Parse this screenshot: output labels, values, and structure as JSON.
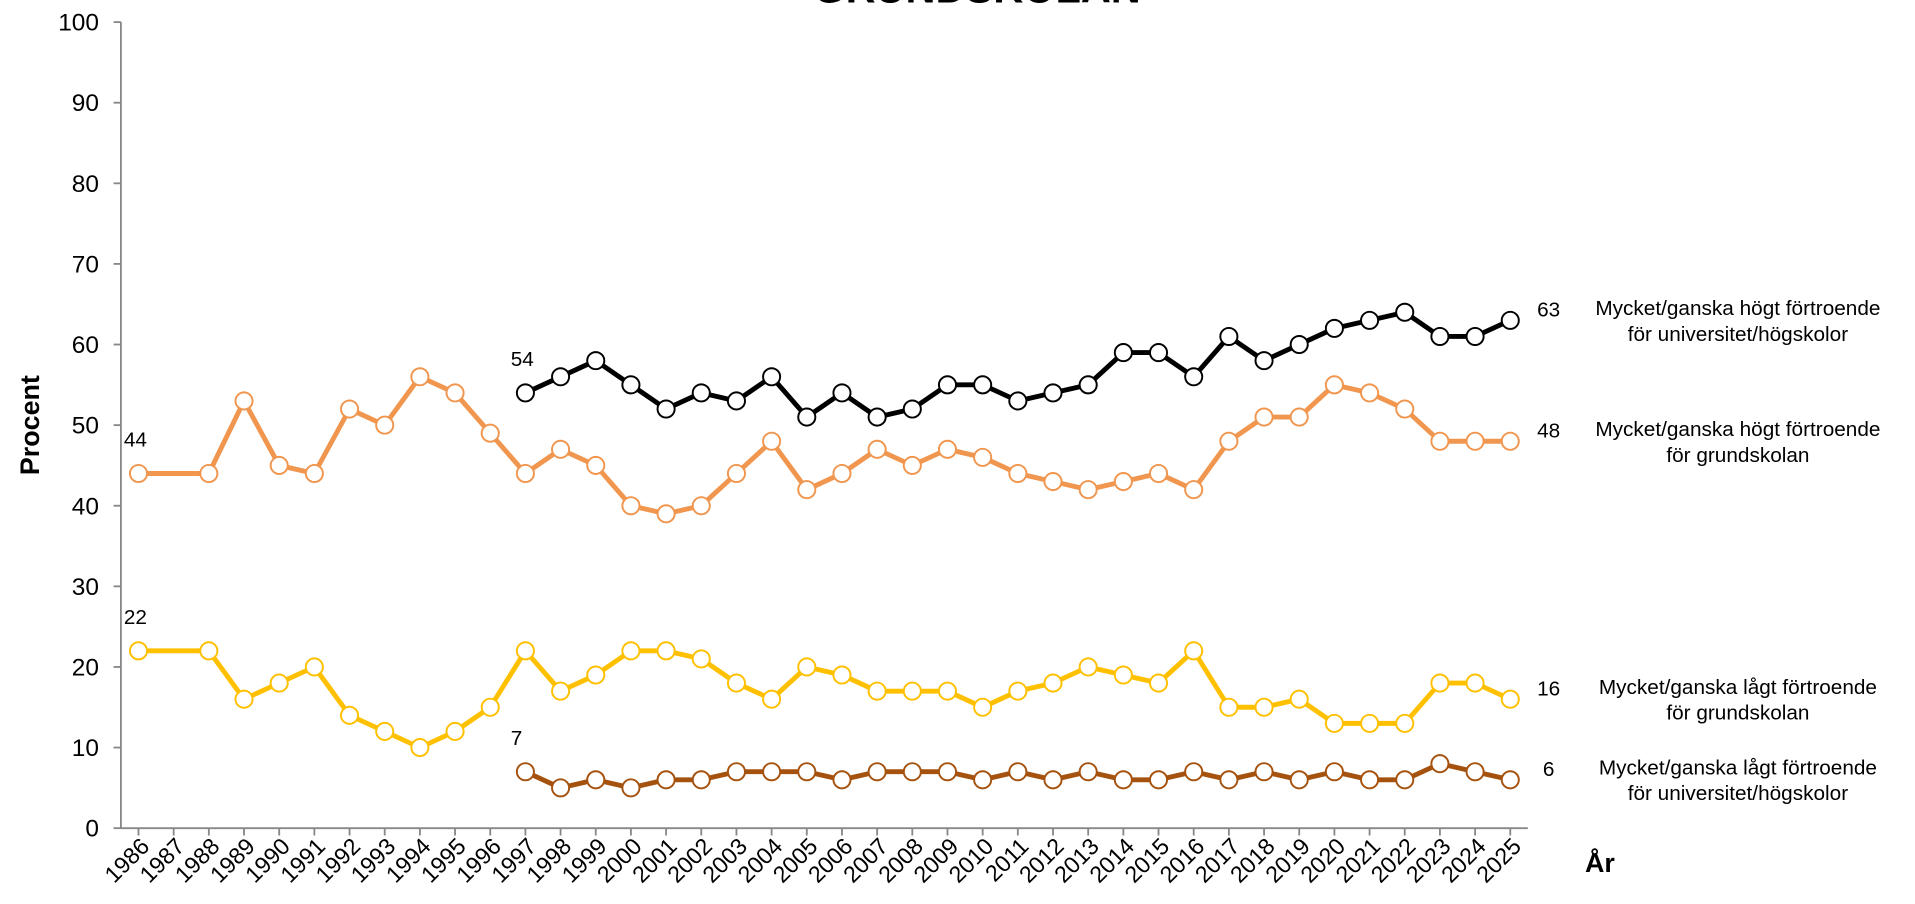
{
  "chart_data": {
    "type": "line",
    "title": "GRUNDSKOLAN",
    "ylabel": "Procent",
    "xlabel": "År",
    "ylim": [
      0,
      100
    ],
    "yticks": [
      0,
      10,
      20,
      30,
      40,
      50,
      60,
      70,
      80,
      90,
      100
    ],
    "xlim": [
      1985.5,
      2025.5
    ],
    "xticks": [
      1986,
      1987,
      1988,
      1989,
      1990,
      1991,
      1992,
      1993,
      1994,
      1995,
      1996,
      1997,
      1998,
      1999,
      2000,
      2001,
      2002,
      2003,
      2004,
      2005,
      2006,
      2007,
      2008,
      2009,
      2010,
      2011,
      2012,
      2013,
      2014,
      2015,
      2016,
      2017,
      2018,
      2019,
      2020,
      2021,
      2022,
      2023,
      2024,
      2025
    ],
    "grid": false,
    "series": [
      {
        "name": "Mycket/ganska högt förtroende\nför universitet/högskolor",
        "color": "#000000",
        "x": [
          1997,
          1998,
          1999,
          2000,
          2001,
          2002,
          2003,
          2004,
          2005,
          2006,
          2007,
          2008,
          2009,
          2010,
          2011,
          2012,
          2013,
          2014,
          2015,
          2016,
          2017,
          2018,
          2019,
          2020,
          2021,
          2022,
          2023,
          2024,
          2025
        ],
        "values": [
          54,
          56,
          58,
          55,
          52,
          54,
          53,
          56,
          51,
          54,
          51,
          52,
          55,
          55,
          53,
          54,
          55,
          59,
          59,
          56,
          61,
          58,
          60,
          62,
          63,
          64,
          61,
          61,
          63
        ]
      },
      {
        "name": "Mycket/ganska högt förtroende\nför grundskolan",
        "color": "#f0964f",
        "x": [
          1986,
          1988,
          1989,
          1990,
          1991,
          1992,
          1993,
          1994,
          1995,
          1996,
          1997,
          1998,
          1999,
          2000,
          2001,
          2002,
          2003,
          2004,
          2005,
          2006,
          2007,
          2008,
          2009,
          2010,
          2011,
          2012,
          2013,
          2014,
          2015,
          2016,
          2017,
          2018,
          2019,
          2020,
          2021,
          2022,
          2023,
          2024,
          2025
        ],
        "values": [
          44,
          44,
          53,
          45,
          44,
          52,
          50,
          56,
          54,
          49,
          44,
          47,
          45,
          40,
          39,
          40,
          44,
          48,
          42,
          44,
          47,
          45,
          47,
          46,
          44,
          43,
          42,
          43,
          44,
          42,
          48,
          51,
          51,
          55,
          54,
          52,
          48,
          48,
          48
        ]
      },
      {
        "name": "Mycket/ganska lågt förtroende\nför grundskolan",
        "color": "#ffc000",
        "x": [
          1986,
          1988,
          1989,
          1990,
          1991,
          1992,
          1993,
          1994,
          1995,
          1996,
          1997,
          1998,
          1999,
          2000,
          2001,
          2002,
          2003,
          2004,
          2005,
          2006,
          2007,
          2008,
          2009,
          2010,
          2011,
          2012,
          2013,
          2014,
          2015,
          2016,
          2017,
          2018,
          2019,
          2020,
          2021,
          2022,
          2023,
          2024,
          2025
        ],
        "values": [
          22,
          22,
          16,
          18,
          20,
          14,
          12,
          10,
          12,
          15,
          22,
          17,
          19,
          22,
          22,
          21,
          18,
          16,
          20,
          19,
          17,
          17,
          17,
          15,
          17,
          18,
          20,
          19,
          18,
          22,
          15,
          15,
          16,
          13,
          13,
          13,
          18,
          18,
          16
        ]
      },
      {
        "name": "Mycket/ganska lågt förtroende\nför universitet/högskolor",
        "color": "#a5520f",
        "x": [
          1997,
          1998,
          1999,
          2000,
          2001,
          2002,
          2003,
          2004,
          2005,
          2006,
          2007,
          2008,
          2009,
          2010,
          2011,
          2012,
          2013,
          2014,
          2015,
          2016,
          2017,
          2018,
          2019,
          2020,
          2021,
          2022,
          2023,
          2024,
          2025
        ],
        "values": [
          7,
          5,
          6,
          5,
          6,
          6,
          7,
          7,
          7,
          6,
          7,
          7,
          7,
          6,
          7,
          6,
          7,
          6,
          6,
          7,
          6,
          7,
          6,
          7,
          6,
          6,
          8,
          7,
          6
        ]
      }
    ]
  }
}
